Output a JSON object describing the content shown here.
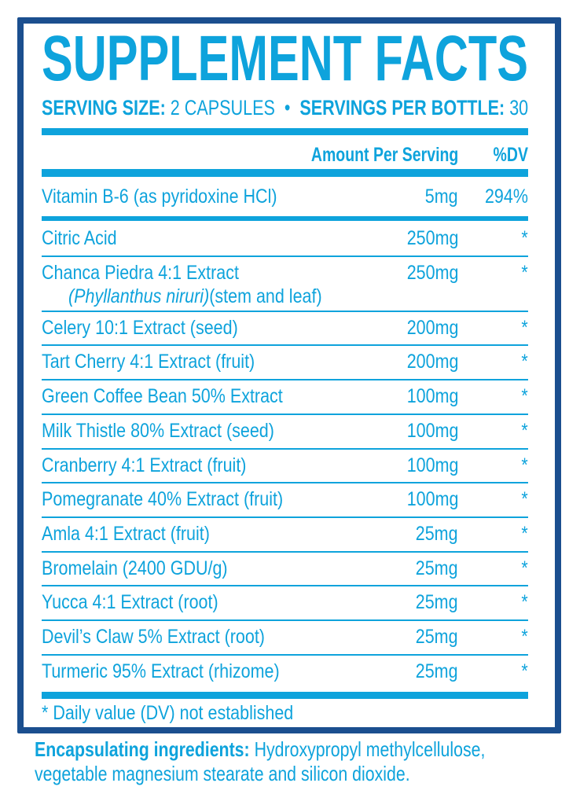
{
  "title": "SUPPLEMENT FACTS",
  "serving": {
    "size_label": "SERVING SIZE:",
    "size_value": "2 CAPSULES",
    "separator": "•",
    "per_bottle_label": "SERVINGS PER BOTTLE:",
    "per_bottle_value": "30"
  },
  "header": {
    "amount": "Amount Per Serving",
    "dv": "%DV"
  },
  "primary": {
    "name": "Vitamin B-6 (as pyridoxine HCl)",
    "amount": "5mg",
    "dv": "294%"
  },
  "ingredients": [
    {
      "name": "Citric Acid",
      "amount": "250mg",
      "dv": "*"
    },
    {
      "name": "Chanca Piedra 4:1 Extract",
      "sub_italic": "(Phyllanthus niruri)",
      "sub": "(stem and leaf)",
      "amount": "250mg",
      "dv": "*"
    },
    {
      "name": "Celery 10:1 Extract (seed)",
      "amount": "200mg",
      "dv": "*"
    },
    {
      "name": "Tart Cherry 4:1 Extract (fruit)",
      "amount": "200mg",
      "dv": "*"
    },
    {
      "name": "Green Coffee Bean 50% Extract",
      "amount": "100mg",
      "dv": "*"
    },
    {
      "name": "Milk Thistle 80% Extract (seed)",
      "amount": "100mg",
      "dv": "*"
    },
    {
      "name": "Cranberry 4:1 Extract (fruit)",
      "amount": "100mg",
      "dv": "*"
    },
    {
      "name": "Pomegranate 40% Extract (fruit)",
      "amount": "100mg",
      "dv": "*"
    },
    {
      "name": "Amla 4:1 Extract (fruit)",
      "amount": "25mg",
      "dv": "*"
    },
    {
      "name": "Bromelain (2400 GDU/g)",
      "amount": "25mg",
      "dv": "*"
    },
    {
      "name": "Yucca 4:1 Extract (root)",
      "amount": "25mg",
      "dv": "*"
    },
    {
      "name": "Devil’s Claw 5% Extract (root)",
      "amount": "25mg",
      "dv": "*"
    },
    {
      "name": "Turmeric 95% Extract (rhizome)",
      "amount": "25mg",
      "dv": "*"
    }
  ],
  "footnote": "* Daily value (DV) not established",
  "encapsulating": {
    "label": "Encapsulating ingredients:",
    "line1": "Hydroxypropyl methylcellulose,",
    "line2": "vegetable magnesium stearate and silicon dioxide."
  },
  "colors": {
    "text": "#0ea3dc",
    "border": "#1b4f8f"
  }
}
